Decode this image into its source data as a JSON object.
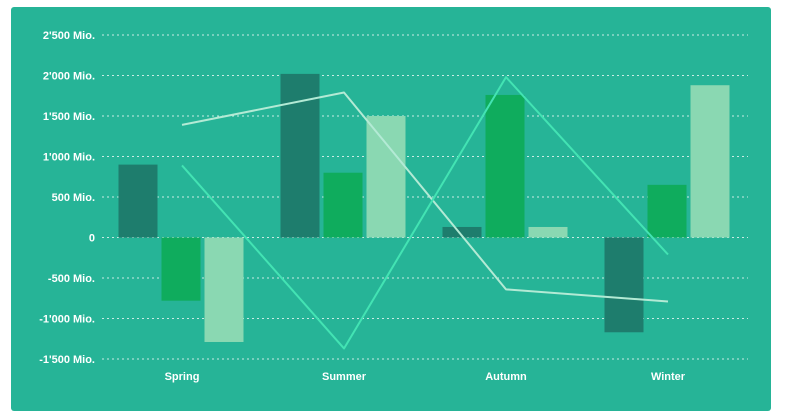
{
  "chart_data": {
    "type": "bar",
    "categories": [
      "Spring",
      "Summer",
      "Autumn",
      "Winter"
    ],
    "y_ticks": [
      {
        "value": 2500,
        "label": "2'500 Mio."
      },
      {
        "value": 2000,
        "label": "2'000 Mio."
      },
      {
        "value": 1500,
        "label": "1'500 Mio."
      },
      {
        "value": 1000,
        "label": "1'000 Mio."
      },
      {
        "value": 500,
        "label": "500 Mio."
      },
      {
        "value": 0,
        "label": "0"
      },
      {
        "value": -500,
        "label": "-500 Mio."
      },
      {
        "value": -1000,
        "label": "-1'000 Mio."
      },
      {
        "value": -1500,
        "label": "-1'500 Mio."
      }
    ],
    "ylim": [
      -1500,
      2500
    ],
    "grid": true,
    "bar_series": [
      {
        "values": [
          900,
          2020,
          130,
          -1170
        ],
        "color": "#1e7d6d"
      },
      {
        "values": [
          -780,
          800,
          1760,
          650
        ],
        "color": "#0fac5d"
      },
      {
        "values": [
          -1290,
          1500,
          130,
          1880
        ],
        "color": "#8ad8b2"
      }
    ],
    "line_series": [
      {
        "values": [
          1390,
          1790,
          -640,
          -790
        ],
        "color": "#b3ead5"
      },
      {
        "values": [
          890,
          -1370,
          1980,
          -210
        ],
        "color": "#43e3b3"
      }
    ],
    "background_color": "#26b497",
    "grid_color": "#ffffff"
  }
}
